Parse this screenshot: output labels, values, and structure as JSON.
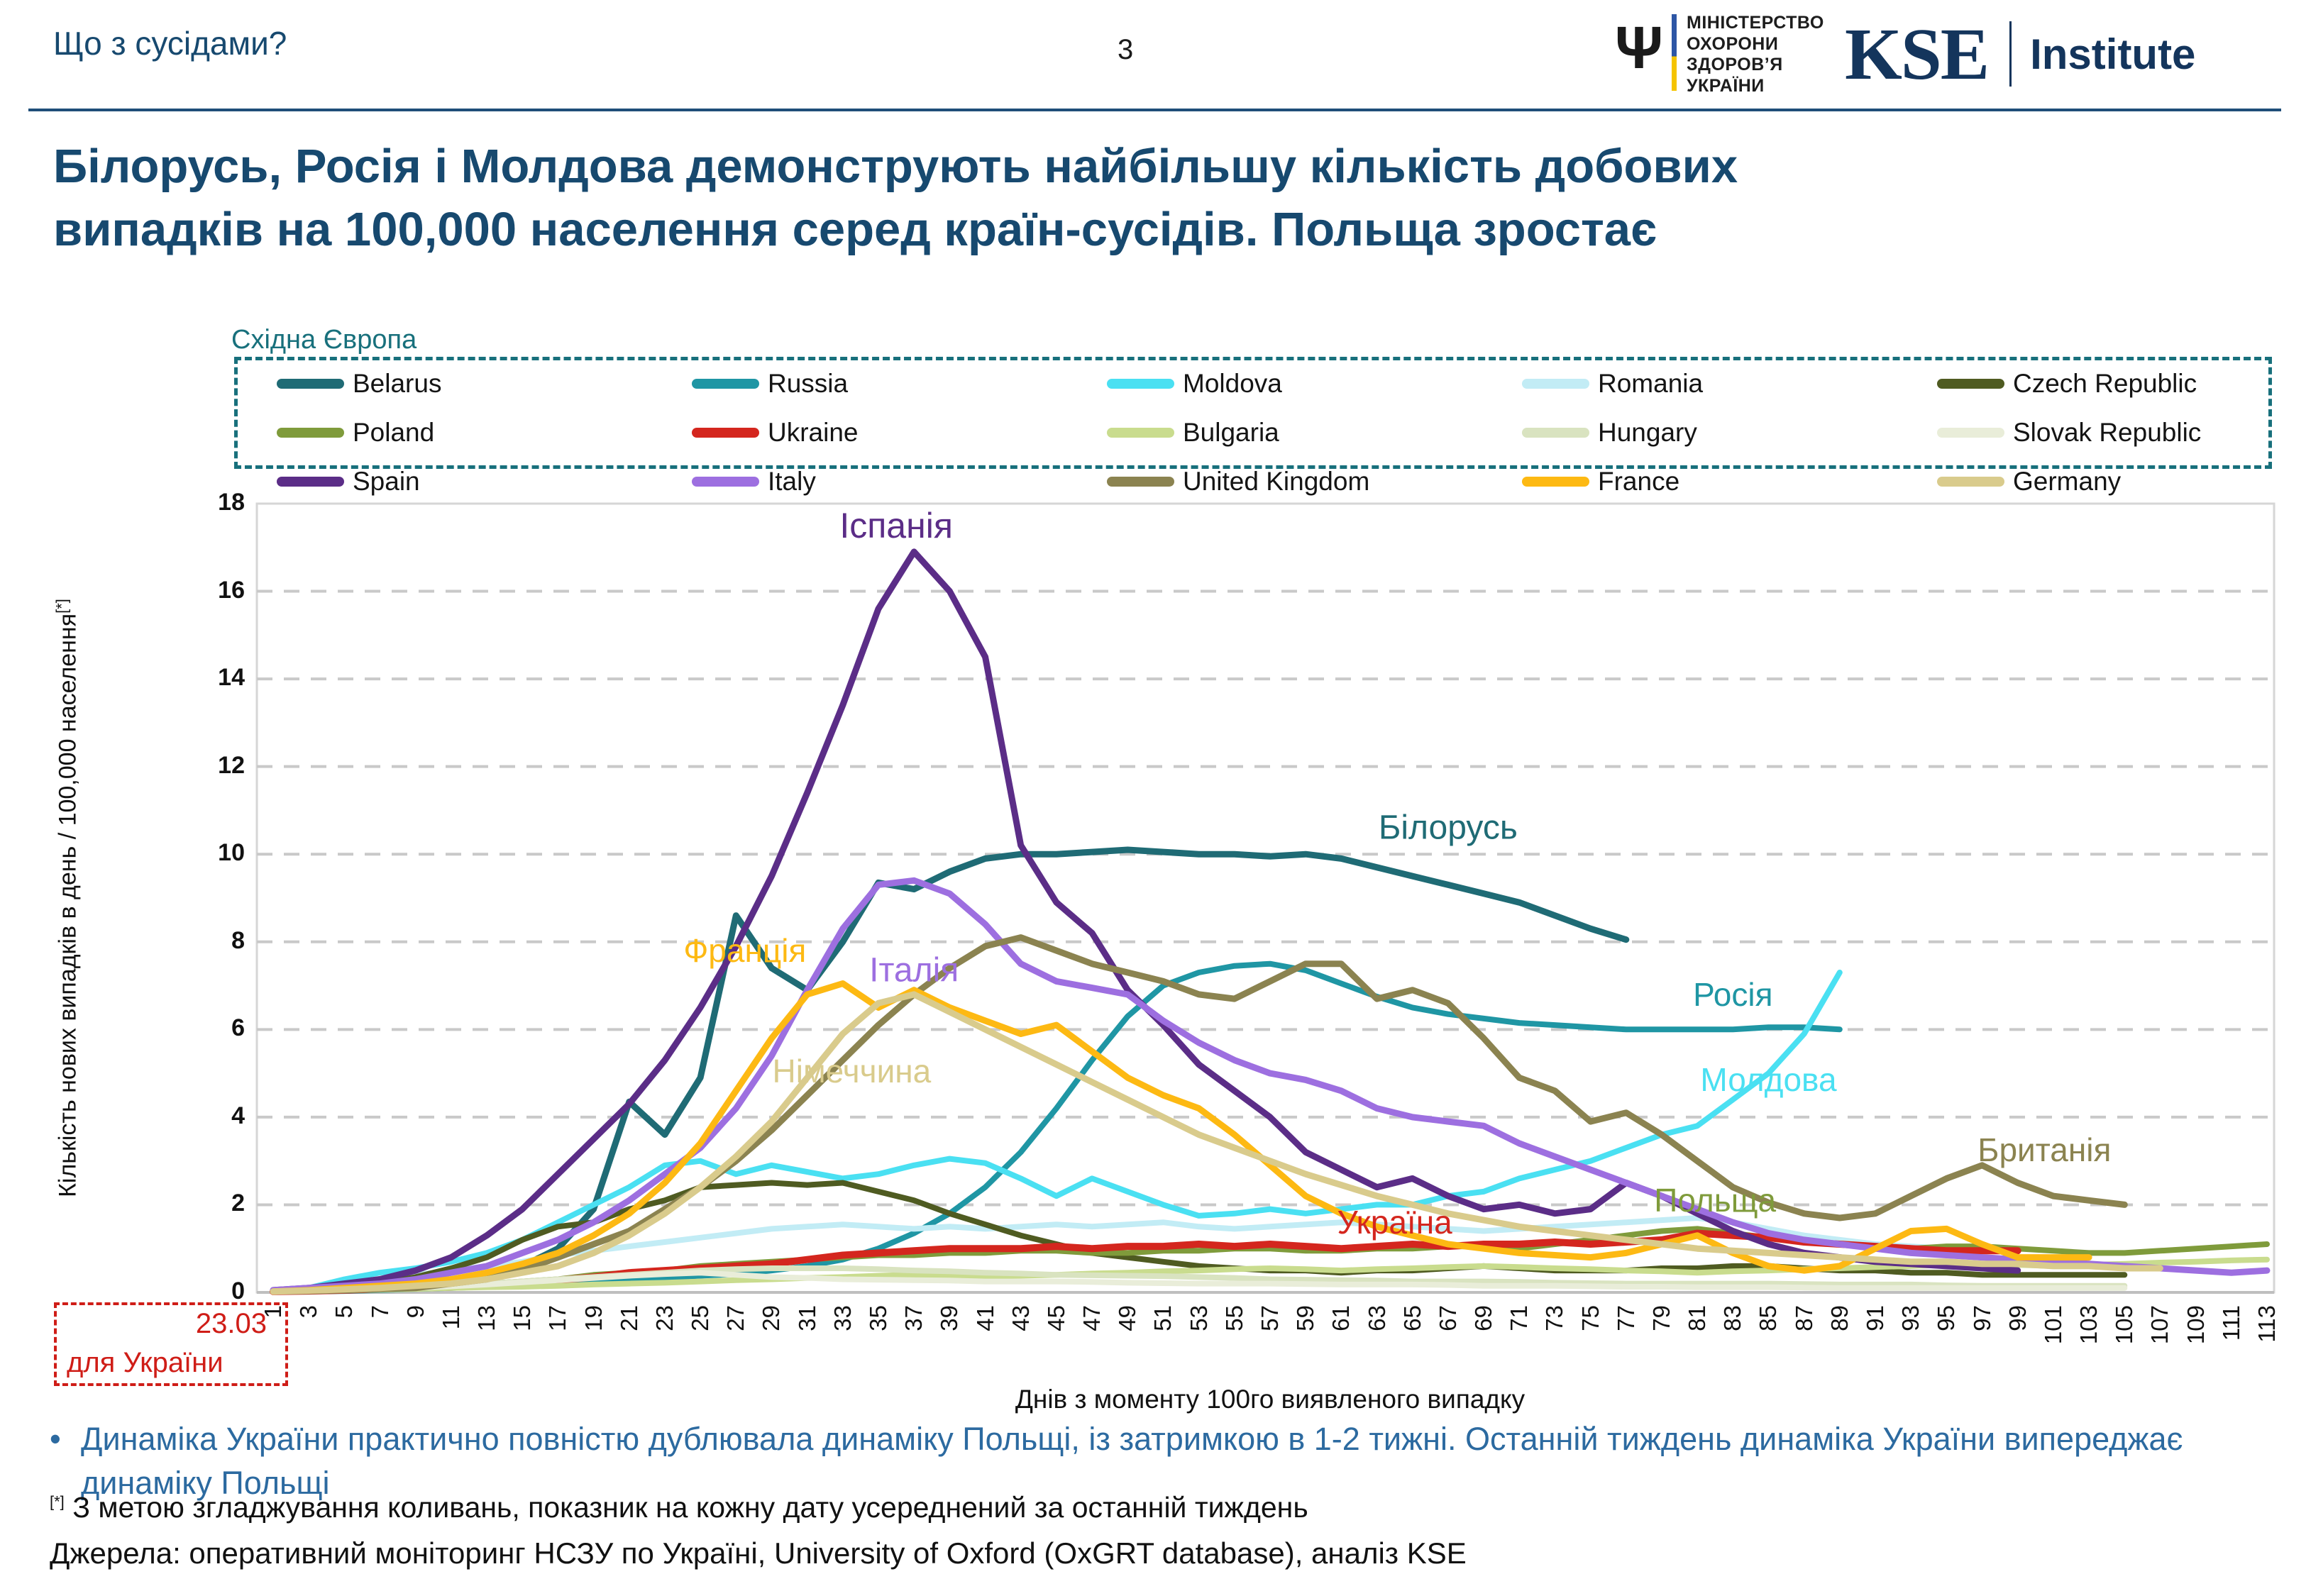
{
  "header": {
    "subtitle": "Що з сусідами?",
    "page_number": "3",
    "moz_logo": {
      "trident_glyph": "Ψ",
      "lines": [
        "МІНІСТЕРСТВО",
        "ОХОРОНИ",
        "ЗДОРОВ’Я",
        "УКРАЇНИ"
      ]
    },
    "kse_logo": {
      "mark": "KSE",
      "name": "Institute"
    }
  },
  "title": {
    "line1": "Білорусь, Росія і Молдова демонструють найбільшу кількість добових",
    "line2": "випадків на 100,000 населення серед країн-сусідів. Польща зростає"
  },
  "legend": {
    "group_label": "Східна Європа",
    "items": [
      {
        "label": "Belarus",
        "color": "#1f6b75"
      },
      {
        "label": "Russia",
        "color": "#1f96a4"
      },
      {
        "label": "Moldova",
        "color": "#4ae0f2"
      },
      {
        "label": "Romania",
        "color": "#c2ecf5"
      },
      {
        "label": "Czech Republic",
        "color": "#4f5b21"
      },
      {
        "label": "Poland",
        "color": "#7f9b3b"
      },
      {
        "label": "Ukraine",
        "color": "#d4261e"
      },
      {
        "label": "Bulgaria",
        "color": "#c9dc8e"
      },
      {
        "label": "Hungary",
        "color": "#d9e3c0"
      },
      {
        "label": "Slovak Republic",
        "color": "#e9edd9"
      },
      {
        "label": "Spain",
        "color": "#5b2d87"
      },
      {
        "label": "Italy",
        "color": "#9d6fe0"
      },
      {
        "label": "United Kingdom",
        "color": "#8b8350"
      },
      {
        "label": "France",
        "color": "#fdb913"
      },
      {
        "label": "Germany",
        "color": "#d9cb8c"
      }
    ]
  },
  "chart_data": {
    "type": "line",
    "xlabel": "Днів з моменту 100го виявленого випадку",
    "ylabel": "Кількість нових випадків в день / 100,000 населення",
    "ylabel_sup": "[*]",
    "ylim": [
      0,
      18
    ],
    "yticks": [
      0,
      2,
      4,
      6,
      8,
      10,
      12,
      14,
      16,
      18
    ],
    "grid": "dashed-horizontal",
    "legend_position": "top",
    "x": [
      1,
      3,
      5,
      7,
      9,
      11,
      13,
      15,
      17,
      19,
      21,
      23,
      25,
      27,
      29,
      31,
      33,
      35,
      37,
      39,
      41,
      43,
      45,
      47,
      49,
      51,
      53,
      55,
      57,
      59,
      61,
      63,
      65,
      67,
      69,
      71,
      73,
      75,
      77,
      79,
      81,
      83,
      85,
      87,
      89,
      91,
      93,
      95,
      97,
      99,
      101,
      103,
      105,
      107,
      109,
      111,
      113
    ],
    "series": [
      {
        "name": "Belarus",
        "color": "#1f6b75",
        "width": 9,
        "values": [
          0.02,
          0.03,
          0.05,
          0.08,
          0.12,
          0.2,
          0.3,
          0.6,
          1.0,
          1.9,
          4.35,
          3.6,
          4.9,
          8.6,
          7.4,
          6.9,
          8.0,
          9.35,
          9.2,
          9.6,
          9.9,
          10.0,
          10.0,
          10.05,
          10.1,
          10.05,
          10.0,
          10.0,
          9.95,
          10.0,
          9.9,
          9.7,
          9.5,
          9.3,
          9.1,
          8.9,
          8.6,
          8.3,
          8.05,
          null,
          null,
          null,
          null,
          null,
          null,
          null,
          null,
          null,
          null,
          null,
          null,
          null,
          null,
          null,
          null,
          null,
          null
        ]
      },
      {
        "name": "Russia",
        "color": "#1f96a4",
        "width": 8,
        "values": [
          0.01,
          0.02,
          0.03,
          0.05,
          0.08,
          0.1,
          0.13,
          0.17,
          0.2,
          0.25,
          0.3,
          0.33,
          0.38,
          0.42,
          0.5,
          0.6,
          0.75,
          1.0,
          1.35,
          1.8,
          2.4,
          3.2,
          4.2,
          5.3,
          6.3,
          7.0,
          7.3,
          7.45,
          7.5,
          7.35,
          7.05,
          6.75,
          6.5,
          6.35,
          6.25,
          6.15,
          6.1,
          6.05,
          6.0,
          6.0,
          6.0,
          6.0,
          6.05,
          6.05,
          6.0,
          null,
          null,
          null,
          null,
          null,
          null,
          null,
          null,
          null,
          null,
          null,
          null
        ]
      },
      {
        "name": "Moldova",
        "color": "#4ae0f2",
        "width": 8,
        "values": [
          0.05,
          0.1,
          0.3,
          0.45,
          0.55,
          0.7,
          0.9,
          1.2,
          1.6,
          2.0,
          2.4,
          2.9,
          3.0,
          2.7,
          2.9,
          2.75,
          2.6,
          2.7,
          2.9,
          3.05,
          2.95,
          2.6,
          2.2,
          2.6,
          2.3,
          2.0,
          1.75,
          1.8,
          1.9,
          1.8,
          1.9,
          2.0,
          2.0,
          2.2,
          2.3,
          2.6,
          2.8,
          3.0,
          3.3,
          3.6,
          3.8,
          4.4,
          5.0,
          5.9,
          7.3,
          null,
          null,
          null,
          null,
          null,
          null,
          null,
          null,
          null,
          null,
          null,
          null
        ]
      },
      {
        "name": "Romania",
        "color": "#c2ecf5",
        "width": 8,
        "values": [
          0.05,
          0.1,
          0.2,
          0.3,
          0.4,
          0.5,
          0.6,
          0.7,
          0.85,
          0.95,
          1.05,
          1.15,
          1.25,
          1.35,
          1.45,
          1.5,
          1.55,
          1.5,
          1.45,
          1.5,
          1.45,
          1.5,
          1.55,
          1.5,
          1.55,
          1.6,
          1.5,
          1.45,
          1.5,
          1.55,
          1.6,
          1.55,
          1.5,
          1.45,
          1.4,
          1.45,
          1.5,
          1.55,
          1.6,
          1.65,
          1.7,
          1.6,
          1.45,
          1.3,
          1.2,
          1.1,
          1.05,
          1.0,
          1.0,
          null,
          null,
          null,
          null,
          null,
          null,
          null,
          null
        ]
      },
      {
        "name": "Czech Republic",
        "color": "#4f5b21",
        "width": 8,
        "values": [
          0.02,
          0.05,
          0.1,
          0.2,
          0.35,
          0.55,
          0.8,
          1.2,
          1.5,
          1.6,
          1.9,
          2.1,
          2.4,
          2.45,
          2.5,
          2.45,
          2.5,
          2.3,
          2.1,
          1.8,
          1.55,
          1.3,
          1.1,
          0.9,
          0.8,
          0.7,
          0.6,
          0.55,
          0.5,
          0.5,
          0.45,
          0.5,
          0.5,
          0.55,
          0.6,
          0.55,
          0.5,
          0.5,
          0.5,
          0.55,
          0.55,
          0.6,
          0.6,
          0.55,
          0.5,
          0.5,
          0.45,
          0.45,
          0.4,
          0.4,
          0.4,
          0.4,
          0.4,
          null,
          null,
          null,
          null
        ]
      },
      {
        "name": "Poland",
        "color": "#7f9b3b",
        "width": 8,
        "values": [
          0.02,
          0.03,
          0.05,
          0.08,
          0.1,
          0.15,
          0.2,
          0.25,
          0.3,
          0.4,
          0.45,
          0.5,
          0.6,
          0.65,
          0.7,
          0.75,
          0.8,
          0.85,
          0.85,
          0.9,
          0.9,
          0.95,
          0.95,
          0.9,
          0.9,
          0.95,
          0.95,
          1.0,
          1.0,
          0.95,
          0.95,
          1.0,
          1.0,
          1.05,
          1.05,
          1.0,
          1.1,
          1.2,
          1.3,
          1.4,
          1.45,
          1.35,
          1.25,
          1.15,
          1.1,
          1.05,
          1.0,
          1.05,
          1.05,
          1.0,
          0.95,
          0.9,
          0.9,
          0.95,
          1.0,
          1.05,
          1.1
        ]
      },
      {
        "name": "Ukraine",
        "color": "#d4261e",
        "width": 10,
        "values": [
          0.02,
          0.03,
          0.05,
          0.08,
          0.1,
          0.12,
          0.15,
          0.2,
          0.28,
          0.35,
          0.45,
          0.5,
          0.55,
          0.6,
          0.65,
          0.75,
          0.85,
          0.9,
          0.95,
          1.0,
          1.0,
          1.0,
          1.05,
          1.0,
          1.05,
          1.05,
          1.1,
          1.05,
          1.1,
          1.05,
          1.0,
          1.05,
          1.1,
          1.05,
          1.1,
          1.1,
          1.15,
          1.1,
          1.15,
          1.2,
          1.35,
          1.3,
          1.25,
          1.15,
          1.1,
          1.05,
          1.0,
          0.95,
          0.95,
          0.95,
          null,
          null,
          null,
          null,
          null,
          null,
          null
        ]
      },
      {
        "name": "Bulgaria",
        "color": "#c9dc8e",
        "width": 8,
        "values": [
          0.02,
          0.03,
          0.05,
          0.06,
          0.08,
          0.1,
          0.12,
          0.13,
          0.15,
          0.18,
          0.2,
          0.22,
          0.25,
          0.28,
          0.3,
          0.33,
          0.35,
          0.38,
          0.4,
          0.38,
          0.35,
          0.38,
          0.4,
          0.43,
          0.45,
          0.48,
          0.5,
          0.53,
          0.55,
          0.53,
          0.5,
          0.53,
          0.55,
          0.58,
          0.6,
          0.58,
          0.55,
          0.53,
          0.5,
          0.48,
          0.45,
          0.48,
          0.5,
          0.53,
          0.55,
          0.58,
          0.6,
          0.63,
          0.65,
          0.63,
          0.6,
          0.63,
          0.65,
          0.68,
          0.7,
          0.73,
          0.75
        ]
      },
      {
        "name": "Hungary",
        "color": "#d9e3c0",
        "width": 8,
        "values": [
          0.02,
          0.04,
          0.06,
          0.09,
          0.12,
          0.16,
          0.2,
          0.25,
          0.3,
          0.35,
          0.4,
          0.45,
          0.5,
          0.53,
          0.55,
          0.55,
          0.55,
          0.53,
          0.5,
          0.48,
          0.45,
          0.43,
          0.4,
          0.39,
          0.38,
          0.37,
          0.35,
          0.33,
          0.3,
          0.29,
          0.28,
          0.27,
          0.25,
          0.25,
          0.25,
          0.24,
          0.22,
          0.21,
          0.2,
          0.2,
          0.2,
          0.2,
          0.2,
          0.19,
          0.18,
          0.18,
          0.18,
          0.16,
          0.15,
          0.15,
          0.15,
          0.15,
          0.15,
          null,
          null,
          null,
          null
        ]
      },
      {
        "name": "Slovak Republic",
        "color": "#e9edd9",
        "width": 8,
        "values": [
          0.02,
          0.03,
          0.05,
          0.07,
          0.1,
          0.14,
          0.18,
          0.23,
          0.28,
          0.33,
          0.38,
          0.42,
          0.45,
          0.4,
          0.35,
          0.33,
          0.3,
          0.29,
          0.28,
          0.27,
          0.25,
          0.25,
          0.25,
          0.24,
          0.22,
          0.21,
          0.2,
          0.2,
          0.2,
          0.19,
          0.18,
          0.18,
          0.18,
          0.17,
          0.15,
          0.15,
          0.15,
          0.14,
          0.13,
          0.13,
          0.12,
          0.12,
          0.12,
          0.11,
          0.1,
          0.1,
          0.1,
          0.1,
          0.1,
          0.1,
          0.1,
          0.1,
          0.1,
          null,
          null,
          null,
          null
        ]
      },
      {
        "name": "Spain",
        "color": "#5b2d87",
        "width": 9,
        "values": [
          0.05,
          0.1,
          0.2,
          0.3,
          0.5,
          0.8,
          1.3,
          1.9,
          2.7,
          3.5,
          4.3,
          5.3,
          6.5,
          7.9,
          9.5,
          11.4,
          13.4,
          15.6,
          16.9,
          16.0,
          14.5,
          10.2,
          8.9,
          8.2,
          6.9,
          6.1,
          5.2,
          4.6,
          4.0,
          3.2,
          2.8,
          2.4,
          2.6,
          2.2,
          1.9,
          2.0,
          1.8,
          1.9,
          2.5,
          2.2,
          1.8,
          1.4,
          1.1,
          0.9,
          0.8,
          0.7,
          0.65,
          0.6,
          0.55,
          0.5,
          null,
          null,
          null,
          null,
          null,
          null,
          null
        ]
      },
      {
        "name": "Italy",
        "color": "#9d6fe0",
        "width": 9,
        "values": [
          0.05,
          0.1,
          0.15,
          0.2,
          0.3,
          0.45,
          0.6,
          0.9,
          1.2,
          1.6,
          2.1,
          2.7,
          3.3,
          4.2,
          5.4,
          6.9,
          8.3,
          9.3,
          9.4,
          9.1,
          8.4,
          7.5,
          7.1,
          6.95,
          6.8,
          6.2,
          5.7,
          5.3,
          5.0,
          4.85,
          4.6,
          4.2,
          4.0,
          3.9,
          3.8,
          3.4,
          3.1,
          2.8,
          2.5,
          2.2,
          1.9,
          1.6,
          1.35,
          1.2,
          1.1,
          1.0,
          0.9,
          0.85,
          0.8,
          0.75,
          0.7,
          0.65,
          0.6,
          0.55,
          0.5,
          0.45,
          0.5
        ]
      },
      {
        "name": "United Kingdom",
        "color": "#8b8350",
        "width": 9,
        "values": [
          0.02,
          0.03,
          0.05,
          0.08,
          0.1,
          0.2,
          0.3,
          0.5,
          0.8,
          1.1,
          1.4,
          1.9,
          2.4,
          3.0,
          3.7,
          4.5,
          5.3,
          6.1,
          6.8,
          7.4,
          7.9,
          8.1,
          7.8,
          7.5,
          7.3,
          7.1,
          6.8,
          6.7,
          7.1,
          7.5,
          7.5,
          6.7,
          6.9,
          6.6,
          5.8,
          4.9,
          4.6,
          3.9,
          4.1,
          3.6,
          3.0,
          2.4,
          2.05,
          1.8,
          1.7,
          1.8,
          2.2,
          2.6,
          2.9,
          2.5,
          2.2,
          2.1,
          2.0,
          null,
          null,
          null,
          null
        ]
      },
      {
        "name": "France",
        "color": "#fdb913",
        "width": 9,
        "values": [
          0.02,
          0.05,
          0.1,
          0.15,
          0.2,
          0.3,
          0.45,
          0.65,
          0.9,
          1.3,
          1.8,
          2.5,
          3.4,
          4.6,
          5.8,
          6.8,
          7.05,
          6.5,
          6.9,
          6.5,
          6.2,
          5.9,
          6.1,
          5.5,
          4.9,
          4.5,
          4.2,
          3.6,
          2.9,
          2.2,
          1.8,
          1.5,
          1.3,
          1.1,
          1.0,
          0.9,
          0.85,
          0.8,
          0.9,
          1.1,
          1.3,
          0.9,
          0.6,
          0.5,
          0.6,
          1.0,
          1.4,
          1.45,
          1.1,
          0.8,
          0.8,
          0.8,
          null,
          null,
          null,
          null,
          null
        ]
      },
      {
        "name": "Germany",
        "color": "#d9cb8c",
        "width": 9,
        "values": [
          0.02,
          0.04,
          0.07,
          0.1,
          0.15,
          0.2,
          0.3,
          0.45,
          0.6,
          0.9,
          1.3,
          1.8,
          2.4,
          3.1,
          3.9,
          4.9,
          5.9,
          6.6,
          6.8,
          6.4,
          6.0,
          5.6,
          5.2,
          4.8,
          4.4,
          4.0,
          3.6,
          3.3,
          3.0,
          2.7,
          2.45,
          2.2,
          2.0,
          1.8,
          1.65,
          1.5,
          1.4,
          1.3,
          1.2,
          1.1,
          1.0,
          0.95,
          0.9,
          0.85,
          0.8,
          0.75,
          0.7,
          0.7,
          0.65,
          0.65,
          0.6,
          0.6,
          0.55,
          0.55,
          null,
          null,
          null
        ]
      }
    ],
    "annotations": [
      {
        "text": "Іспанія",
        "color": "#5b2d87",
        "day": 36,
        "value": 17.5,
        "size": 50
      },
      {
        "text": "Італія",
        "color": "#9d6fe0",
        "day": 37,
        "value": 7.35,
        "size": 48
      },
      {
        "text": "Франція",
        "color": "#fdb913",
        "day": 27.5,
        "value": 7.8,
        "size": 46
      },
      {
        "text": "Німеччина",
        "color": "#d9cb8c",
        "day": 33.5,
        "value": 5.05,
        "size": 46
      },
      {
        "text": "Білорусь",
        "color": "#1f6b75",
        "day": 67,
        "value": 10.6,
        "size": 48
      },
      {
        "text": "Росія",
        "color": "#1f96a4",
        "day": 83,
        "value": 6.8,
        "size": 46
      },
      {
        "text": "Молдова",
        "color": "#4ae0f2",
        "day": 85,
        "value": 4.85,
        "size": 46
      },
      {
        "text": "Британія",
        "color": "#8b8350",
        "day": 100.5,
        "value": 3.25,
        "size": 46
      },
      {
        "text": "Польща",
        "color": "#7f9b3b",
        "day": 82,
        "value": 2.1,
        "size": 46
      },
      {
        "text": "Україна",
        "color": "#d4261e",
        "day": 64,
        "value": 1.6,
        "size": 46
      }
    ]
  },
  "callout": {
    "date": "23.03",
    "target": "для України"
  },
  "bullet": {
    "marker": "•",
    "text": "Динаміка України практично повністю дублювала динаміку Польщі, із затримкою в 1-2 тижні. Останній тиждень динаміка України випереджає динаміку Польщі"
  },
  "footnote": {
    "marker": "[*]",
    "text": " З метою згладжування коливань, показник на кожну дату усереднений за останній тиждень"
  },
  "sources": {
    "text": "Джерела: оперативний моніторинг НСЗУ по Україні, University of Oxford (OxGRT database), аналіз KSE"
  }
}
